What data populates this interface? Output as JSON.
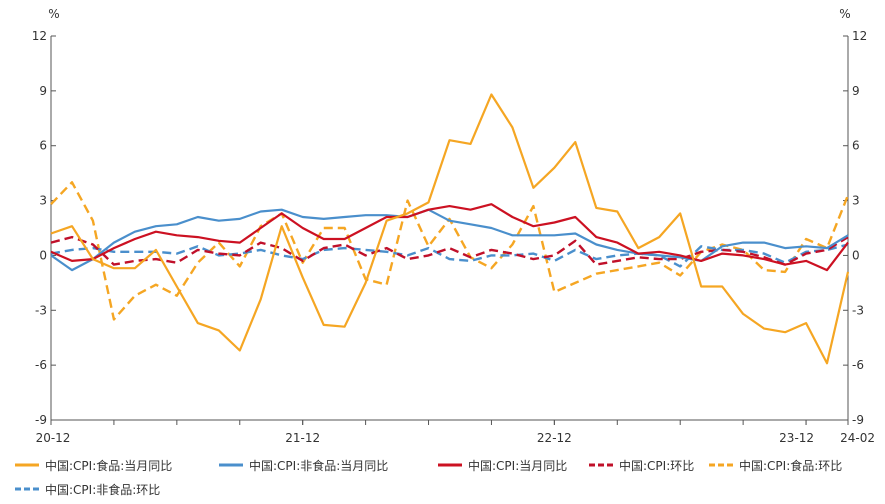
{
  "chart_data": {
    "type": "line",
    "left_axis_unit": "%",
    "right_axis_unit": "%",
    "ylim": [
      -9,
      12
    ],
    "yticks": [
      -9,
      -6,
      -3,
      0,
      3,
      6,
      9,
      12
    ],
    "x_tick_labels": [
      {
        "index": 0,
        "label": "20-12"
      },
      {
        "index": 12,
        "label": "21-12"
      },
      {
        "index": 24,
        "label": "22-12"
      },
      {
        "index": 36,
        "label": "23-12"
      },
      {
        "index": 38,
        "label": "24-02"
      }
    ],
    "periods": [
      "20-12",
      "21-01",
      "21-02",
      "21-03",
      "21-04",
      "21-05",
      "21-06",
      "21-07",
      "21-08",
      "21-09",
      "21-10",
      "21-11",
      "21-12",
      "22-01",
      "22-02",
      "22-03",
      "22-04",
      "22-05",
      "22-06",
      "22-07",
      "22-08",
      "22-09",
      "22-10",
      "22-11",
      "22-12",
      "23-01",
      "23-02",
      "23-03",
      "23-04",
      "23-05",
      "23-06",
      "23-07",
      "23-08",
      "23-09",
      "23-10",
      "23-11",
      "23-12",
      "24-01",
      "24-02"
    ],
    "series": [
      {
        "name": "中国:CPI:食品:当月同比",
        "color": "#F5A623",
        "dash": "solid",
        "values": [
          1.2,
          1.6,
          -0.2,
          -0.7,
          -0.7,
          0.3,
          -1.7,
          -3.7,
          -4.1,
          -5.2,
          -2.4,
          1.6,
          -1.2,
          -3.8,
          -3.9,
          -1.5,
          1.9,
          2.3,
          2.9,
          6.3,
          6.1,
          8.8,
          7.0,
          3.7,
          4.8,
          6.2,
          2.6,
          2.4,
          0.4,
          1.0,
          2.3,
          -1.7,
          -1.7,
          -3.2,
          -4.0,
          -4.2,
          -3.7,
          -5.9,
          -0.9
        ]
      },
      {
        "name": "中国:CPI:非食品:当月同比",
        "color": "#4A8FCC",
        "dash": "solid",
        "values": [
          0.0,
          -0.8,
          -0.2,
          0.7,
          1.3,
          1.6,
          1.7,
          2.1,
          1.9,
          2.0,
          2.4,
          2.5,
          2.1,
          2.0,
          2.1,
          2.2,
          2.2,
          2.1,
          2.5,
          1.9,
          1.7,
          1.5,
          1.1,
          1.1,
          1.1,
          1.2,
          0.6,
          0.3,
          0.1,
          0.0,
          -0.1,
          -0.3,
          0.5,
          0.7,
          0.7,
          0.4,
          0.5,
          0.4,
          1.1
        ]
      },
      {
        "name": "中国:CPI:当月同比",
        "color": "#CC1122",
        "dash": "solid",
        "values": [
          0.2,
          -0.3,
          -0.2,
          0.4,
          0.9,
          1.3,
          1.1,
          1.0,
          0.8,
          0.7,
          1.5,
          2.3,
          1.5,
          0.9,
          0.9,
          1.5,
          2.1,
          2.1,
          2.5,
          2.7,
          2.5,
          2.8,
          2.1,
          1.6,
          1.8,
          2.1,
          1.0,
          0.7,
          0.1,
          0.2,
          0.0,
          -0.3,
          0.1,
          0.0,
          -0.2,
          -0.5,
          -0.3,
          -0.8,
          0.7
        ]
      },
      {
        "name": "中国:CPI:环比",
        "color": "#C0102A",
        "dash": "dashed",
        "values": [
          0.7,
          1.0,
          0.6,
          -0.5,
          -0.3,
          -0.2,
          -0.4,
          0.3,
          0.1,
          0.0,
          0.7,
          0.4,
          -0.3,
          0.4,
          0.6,
          0.0,
          0.4,
          -0.2,
          0.0,
          0.4,
          -0.1,
          0.3,
          0.1,
          -0.2,
          0.0,
          0.8,
          -0.5,
          -0.3,
          -0.1,
          -0.2,
          -0.2,
          0.2,
          0.3,
          0.2,
          -0.1,
          -0.5,
          0.1,
          0.3,
          1.0
        ]
      },
      {
        "name": "中国:CPI:食品:环比",
        "color": "#F5A623",
        "dash": "dashed",
        "values": [
          2.8,
          4.0,
          1.9,
          -3.5,
          -2.2,
          -1.6,
          -2.2,
          -0.4,
          0.7,
          -0.6,
          1.6,
          2.3,
          -0.4,
          1.5,
          1.5,
          -1.3,
          -1.6,
          3.0,
          0.5,
          2.0,
          -0.1,
          -0.7,
          0.6,
          2.7,
          -2.0,
          -1.5,
          -1.0,
          -0.8,
          -0.6,
          -0.4,
          -1.1,
          0.2,
          0.6,
          0.3,
          -0.8,
          -0.9,
          0.9,
          0.4,
          3.3
        ]
      },
      {
        "name": "中国:CPI:非食品:环比",
        "color": "#4A8FCC",
        "dash": "dashed",
        "values": [
          0.1,
          0.3,
          0.4,
          0.2,
          0.2,
          0.2,
          0.1,
          0.5,
          0.0,
          0.1,
          0.3,
          0.0,
          -0.2,
          0.3,
          0.4,
          0.3,
          0.2,
          0.0,
          0.4,
          -0.2,
          -0.3,
          0.0,
          0.0,
          0.1,
          -0.3,
          0.3,
          -0.2,
          0.0,
          0.1,
          0.0,
          -0.6,
          0.5,
          0.3,
          0.3,
          0.1,
          -0.4,
          0.2,
          0.3,
          0.6
        ]
      }
    ],
    "grid": false,
    "legend_position": "bottom"
  }
}
